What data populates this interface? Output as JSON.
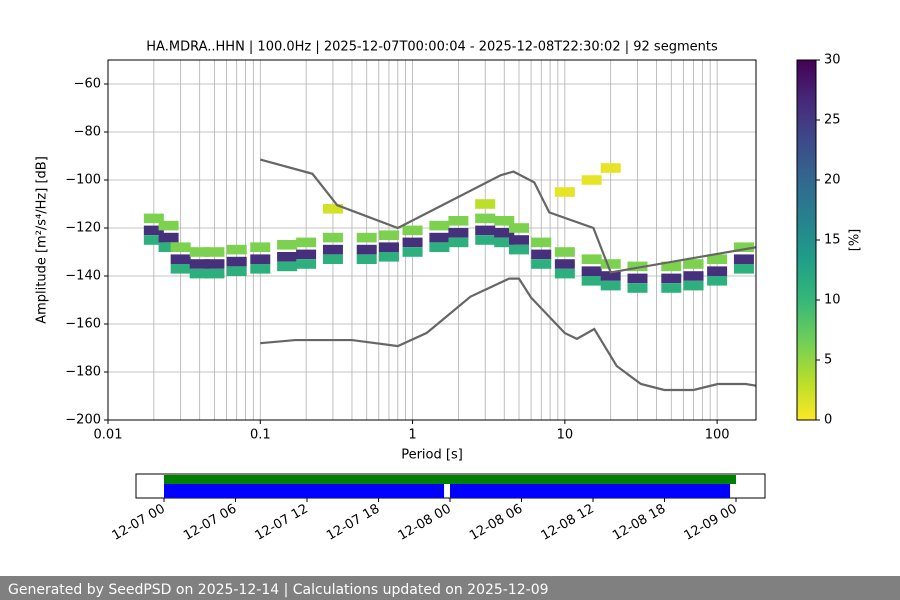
{
  "chart_data": {
    "type": "ppsd",
    "title": "HA.MDRA..HHN | 100.0Hz | 2025-12-07T00:00:04 - 2025-12-08T22:30:02 | 92 segments",
    "xlabel": "Period [s]",
    "ylabel": "Amplitude [m²/s⁴/Hz] [dB]",
    "xscale": "log",
    "grid": true,
    "xlim": [
      0.01,
      180
    ],
    "ylim": [
      -200,
      -50
    ],
    "xticks": [
      0.01,
      0.1,
      1,
      10,
      100
    ],
    "xminor_ticks": [
      0.02,
      0.03,
      0.04,
      0.05,
      0.06,
      0.07,
      0.08,
      0.09,
      0.2,
      0.3,
      0.4,
      0.5,
      0.6,
      0.7,
      0.8,
      0.9,
      2,
      3,
      4,
      5,
      6,
      7,
      8,
      9,
      20,
      30,
      40,
      50,
      60,
      70,
      80,
      90
    ],
    "yticks": [
      {
        "value": -200,
        "label": "−200"
      },
      {
        "value": -180,
        "label": "−180"
      },
      {
        "value": -160,
        "label": "−160"
      },
      {
        "value": -140,
        "label": "−140"
      },
      {
        "value": -120,
        "label": "−120"
      },
      {
        "value": -100,
        "label": "−100"
      },
      {
        "value": -80,
        "label": "−80"
      },
      {
        "value": -60,
        "label": "−60"
      }
    ],
    "cells": {
      "period": [
        0.02,
        0.02,
        0.02,
        0.025,
        0.025,
        0.025,
        0.03,
        0.03,
        0.03,
        0.04,
        0.04,
        0.04,
        0.05,
        0.05,
        0.05,
        0.07,
        0.07,
        0.07,
        0.1,
        0.1,
        0.1,
        0.15,
        0.15,
        0.15,
        0.2,
        0.2,
        0.2,
        0.3,
        0.3,
        0.3,
        0.5,
        0.5,
        0.5,
        0.7,
        0.7,
        0.7,
        1,
        1,
        1,
        1.5,
        1.5,
        1.5,
        2,
        2,
        2,
        3,
        3,
        3,
        4,
        4,
        4,
        5,
        5,
        5,
        7,
        7,
        7,
        10,
        10,
        10,
        15,
        15,
        15,
        20,
        20,
        20,
        30,
        30,
        30,
        50,
        50,
        50,
        70,
        70,
        70,
        100,
        100,
        100,
        150,
        150,
        150,
        0.3,
        3,
        10,
        15,
        20
      ],
      "db": [
        -116,
        -121,
        -125,
        -119,
        -124,
        -128,
        -128,
        -133,
        -137,
        -130,
        -135,
        -139,
        -130,
        -135,
        -139,
        -129,
        -134,
        -138,
        -128,
        -133,
        -137,
        -127,
        -132,
        -136,
        -126,
        -131,
        -135,
        -124,
        -129,
        -133,
        -124,
        -129,
        -133,
        -123,
        -128,
        -132,
        -121,
        -126,
        -130,
        -119,
        -124,
        -128,
        -117,
        -122,
        -126,
        -116,
        -121,
        -125,
        -117,
        -122,
        -126,
        -120,
        -125,
        -129,
        -126,
        -131,
        -135,
        -130,
        -135,
        -139,
        -133,
        -138,
        -142,
        -135,
        -140,
        -144,
        -136,
        -141,
        -145,
        -136,
        -141,
        -145,
        -135,
        -140,
        -144,
        -133,
        -138,
        -142,
        -128,
        -133,
        -137,
        -112,
        -110,
        -105,
        -100,
        -95
      ],
      "percent": [
        6,
        26,
        11,
        6,
        26,
        11,
        6,
        26,
        11,
        6,
        26,
        11,
        6,
        26,
        11,
        6,
        26,
        11,
        6,
        26,
        11,
        6,
        26,
        11,
        6,
        26,
        11,
        6,
        26,
        11,
        6,
        26,
        11,
        6,
        26,
        11,
        6,
        26,
        11,
        6,
        26,
        11,
        6,
        26,
        11,
        6,
        26,
        11,
        6,
        26,
        11,
        6,
        26,
        11,
        6,
        26,
        11,
        6,
        26,
        11,
        6,
        26,
        11,
        6,
        26,
        11,
        6,
        26,
        11,
        6,
        26,
        11,
        6,
        26,
        11,
        6,
        26,
        11,
        6,
        26,
        11,
        2,
        3,
        1,
        1,
        1
      ]
    },
    "series": [
      {
        "color": "#666666",
        "x": [
          0.1,
          0.22,
          0.32,
          0.8,
          3.8,
          4.6,
          6.3,
          7.9,
          15.4,
          20,
          180
        ],
        "values": [
          -91.5,
          -97.4,
          -110.5,
          -120,
          -98,
          -96.5,
          -101,
          -113.5,
          -120,
          -138.5,
          -128
        ]
      },
      {
        "color": "#666666",
        "x": [
          0.1,
          0.17,
          0.4,
          0.8,
          1.24,
          2.4,
          4.3,
          5,
          6,
          10,
          12,
          15.6,
          21.9,
          31.6,
          45,
          70,
          101,
          154,
          180
        ],
        "values": [
          -168,
          -166.7,
          -166.7,
          -169.2,
          -163.7,
          -148.6,
          -141.1,
          -141.1,
          -149,
          -163.8,
          -166.2,
          -162.1,
          -177.5,
          -185,
          -187.5,
          -187.5,
          -185,
          -185,
          -185.7
        ]
      }
    ],
    "colorbar": {
      "label": "[%]",
      "clim": [
        0,
        30
      ],
      "ticks": [
        0,
        5,
        10,
        15,
        20,
        25,
        30
      ],
      "colors": [
        "#fde725",
        "#b5de2b",
        "#6ece58",
        "#35b779",
        "#1f9e89",
        "#26828e",
        "#31688e",
        "#3e4989",
        "#482878",
        "#440154"
      ]
    },
    "coverage": {
      "xlim": [
        "2025-12-06T21:39",
        "2025-12-09T02:26"
      ],
      "xticks": [
        {
          "value": "2025-12-07T00:00",
          "label": "12-07 00"
        },
        {
          "value": "2025-12-07T06:00",
          "label": "12-07 06"
        },
        {
          "value": "2025-12-07T12:00",
          "label": "12-07 12"
        },
        {
          "value": "2025-12-07T18:00",
          "label": "12-07 18"
        },
        {
          "value": "2025-12-08T00:00",
          "label": "12-08 00"
        },
        {
          "value": "2025-12-08T06:00",
          "label": "12-08 06"
        },
        {
          "value": "2025-12-08T12:00",
          "label": "12-08 12"
        },
        {
          "value": "2025-12-08T18:00",
          "label": "12-08 18"
        },
        {
          "value": "2025-12-09T00:00",
          "label": "12-09 00"
        }
      ],
      "rows": [
        {
          "color": "#008000",
          "segments": [
            [
              "2025-12-07T00:00",
              "2025-12-09T00:00"
            ]
          ]
        },
        {
          "color": "#0000ff",
          "segments": [
            [
              "2025-12-07T00:00",
              "2025-12-07T23:30"
            ],
            [
              "2025-12-08T00:00",
              "2025-12-08T23:30"
            ]
          ]
        }
      ]
    }
  },
  "footer": "Generated by SeedPSD on 2025-12-14 | Calculations updated on 2025-12-09"
}
